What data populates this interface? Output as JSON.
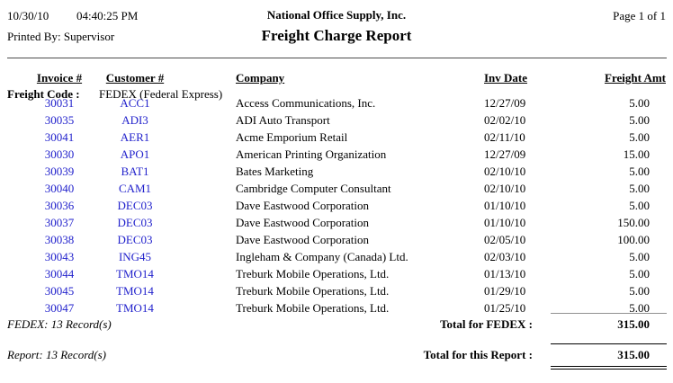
{
  "header": {
    "date": "10/30/10",
    "time": "04:40:25 PM",
    "printed_by": "Printed By: Supervisor",
    "company_name": "National Office Supply, Inc.",
    "title": "Freight Charge Report",
    "page": "Page 1 of 1"
  },
  "table": {
    "columns": {
      "invoice": "Invoice #",
      "customer": "Customer #",
      "company": "Company",
      "inv_date": "Inv Date",
      "freight_amt": "Freight Amt"
    },
    "group": {
      "label": "Freight Code :",
      "value": "FEDEX (Federal Express)"
    },
    "rows": [
      {
        "invoice": "30031",
        "customer": "ACC1",
        "company": "Access Communications, Inc.",
        "inv_date": "12/27/09",
        "freight_amt": "5.00"
      },
      {
        "invoice": "30035",
        "customer": "ADI3",
        "company": "ADI Auto Transport",
        "inv_date": "02/02/10",
        "freight_amt": "5.00"
      },
      {
        "invoice": "30041",
        "customer": "AER1",
        "company": "Acme Emporium Retail",
        "inv_date": "02/11/10",
        "freight_amt": "5.00"
      },
      {
        "invoice": "30030",
        "customer": "APO1",
        "company": "American Printing Organization",
        "inv_date": "12/27/09",
        "freight_amt": "15.00"
      },
      {
        "invoice": "30039",
        "customer": "BAT1",
        "company": "Bates Marketing",
        "inv_date": "02/10/10",
        "freight_amt": "5.00"
      },
      {
        "invoice": "30040",
        "customer": "CAM1",
        "company": "Cambridge Computer Consultant",
        "inv_date": "02/10/10",
        "freight_amt": "5.00"
      },
      {
        "invoice": "30036",
        "customer": "DEC03",
        "company": "Dave Eastwood Corporation",
        "inv_date": "01/10/10",
        "freight_amt": "5.00"
      },
      {
        "invoice": "30037",
        "customer": "DEC03",
        "company": "Dave Eastwood Corporation",
        "inv_date": "01/10/10",
        "freight_amt": "150.00"
      },
      {
        "invoice": "30038",
        "customer": "DEC03",
        "company": "Dave Eastwood Corporation",
        "inv_date": "02/05/10",
        "freight_amt": "100.00"
      },
      {
        "invoice": "30043",
        "customer": "ING45",
        "company": "Ingleham & Company (Canada) Ltd.",
        "inv_date": "02/03/10",
        "freight_amt": "5.00"
      },
      {
        "invoice": "30044",
        "customer": "TMO14",
        "company": "Treburk Mobile Operations, Ltd.",
        "inv_date": "01/13/10",
        "freight_amt": "5.00"
      },
      {
        "invoice": "30045",
        "customer": "TMO14",
        "company": "Treburk Mobile Operations, Ltd.",
        "inv_date": "01/29/10",
        "freight_amt": "5.00"
      },
      {
        "invoice": "30047",
        "customer": "TMO14",
        "company": "Treburk Mobile Operations, Ltd.",
        "inv_date": "01/25/10",
        "freight_amt": "5.00"
      }
    ]
  },
  "totals": {
    "group_count": "FEDEX: 13 Record(s)",
    "group_label": "Total for FEDEX :",
    "group_amount": "315.00",
    "report_count": "Report: 13 Record(s)",
    "report_label": "Total for this Report :",
    "report_amount": "315.00"
  },
  "colors": {
    "link_blue": "#2222CC"
  }
}
